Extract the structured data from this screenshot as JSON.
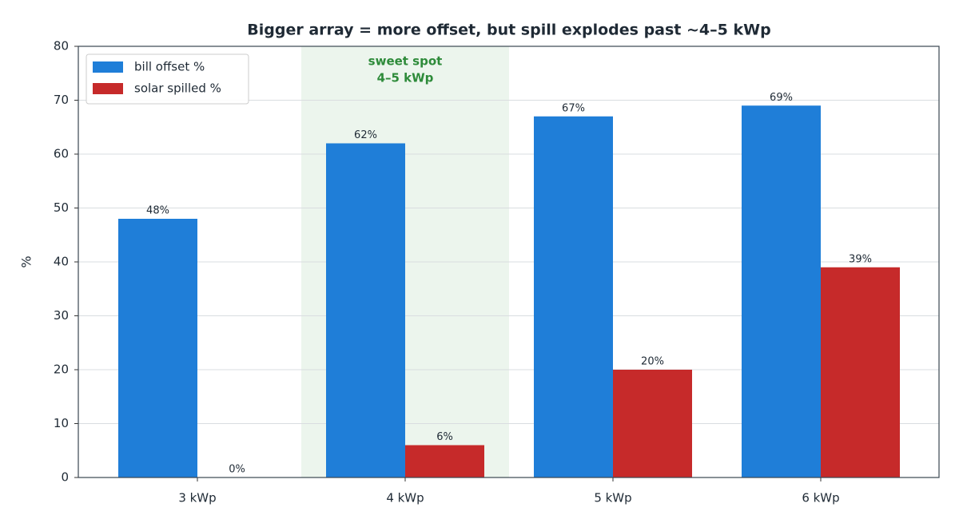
{
  "chart_data": {
    "type": "bar",
    "title": "Bigger array = more offset, but spill explodes past ~4–5 kWp",
    "y_label": "%",
    "categories": [
      "3 kWp",
      "4 kWp",
      "5 kWp",
      "6 kWp"
    ],
    "series": [
      {
        "name": "bill offset %",
        "color": "#1f7ed8",
        "values": [
          48,
          62,
          67,
          69
        ],
        "value_labels": [
          "48%",
          "62%",
          "67%",
          "69%"
        ]
      },
      {
        "name": "solar spilled %",
        "color": "#c62a2a",
        "values": [
          0,
          6,
          20,
          39
        ],
        "value_labels": [
          "0%",
          "6%",
          "20%",
          "39%"
        ]
      }
    ],
    "annotation": {
      "lines": [
        "sweet spot",
        "4–5 kWp"
      ],
      "category": "4 kWp",
      "color": "#2e8b3a"
    },
    "ylim": [
      0,
      80
    ],
    "yticks": [
      0,
      10,
      20,
      30,
      40,
      50,
      60,
      70,
      80
    ],
    "grid": true,
    "legend": "upper left"
  }
}
